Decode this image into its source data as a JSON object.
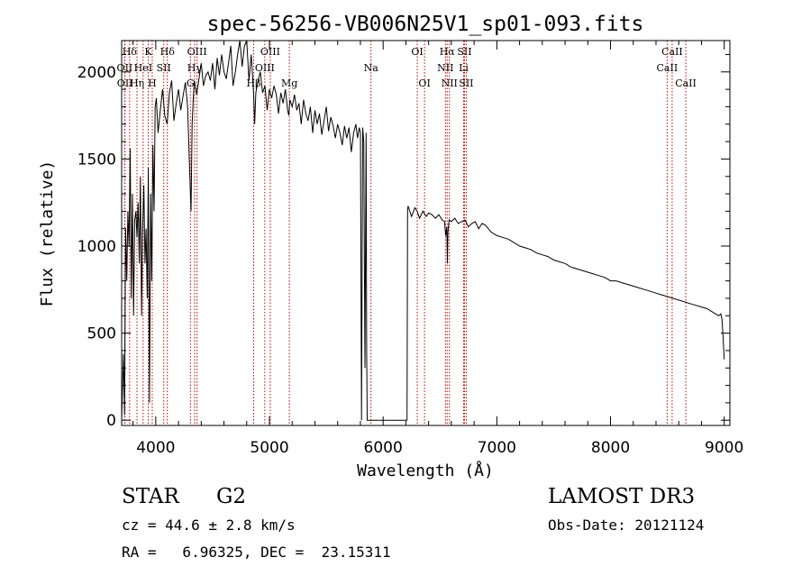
{
  "chart_data": {
    "type": "line",
    "title": "spec-56256-VB006N25V1_sp01-093.fits",
    "xlabel": "Wavelength (Å)",
    "ylabel": "Flux (relative)",
    "xlim": [
      3700,
      9050
    ],
    "ylim": [
      -30,
      2180
    ],
    "xticks": [
      4000,
      5000,
      6000,
      7000,
      8000,
      9000
    ],
    "xtick_labels": [
      "4000",
      "5000",
      "6000",
      "7000",
      "8000",
      "9000"
    ],
    "yticks": [
      0,
      500,
      1000,
      1500,
      2000
    ],
    "ytick_labels": [
      "0",
      "500",
      "1000",
      "1500",
      "2000"
    ],
    "grid": false,
    "line_color": "#000000",
    "marker_color": "#cc0000",
    "series": [
      {
        "name": "flux",
        "x": [
          3700,
          3715,
          3725,
          3735,
          3745,
          3755,
          3765,
          3775,
          3785,
          3795,
          3805,
          3815,
          3825,
          3835,
          3845,
          3855,
          3865,
          3875,
          3885,
          3895,
          3905,
          3915,
          3925,
          3935,
          3945,
          3955,
          3965,
          3975,
          3985,
          3995,
          4005,
          4020,
          4040,
          4060,
          4080,
          4100,
          4120,
          4140,
          4160,
          4180,
          4200,
          4220,
          4240,
          4260,
          4280,
          4300,
          4310,
          4320,
          4330,
          4340,
          4360,
          4380,
          4400,
          4420,
          4440,
          4460,
          4480,
          4500,
          4520,
          4540,
          4560,
          4580,
          4600,
          4620,
          4640,
          4660,
          4680,
          4700,
          4720,
          4740,
          4760,
          4780,
          4800,
          4820,
          4840,
          4860,
          4870,
          4880,
          4900,
          4920,
          4940,
          4960,
          4980,
          5000,
          5020,
          5040,
          5060,
          5080,
          5100,
          5120,
          5140,
          5160,
          5170,
          5180,
          5200,
          5220,
          5240,
          5260,
          5280,
          5300,
          5320,
          5340,
          5360,
          5380,
          5400,
          5420,
          5440,
          5460,
          5480,
          5500,
          5520,
          5540,
          5560,
          5580,
          5600,
          5620,
          5640,
          5660,
          5680,
          5700,
          5720,
          5740,
          5760,
          5775,
          5790,
          5800,
          5810,
          5820,
          5830,
          5840,
          5850,
          5855,
          5860,
          5870,
          5880,
          6200,
          6210,
          6215,
          6220,
          6250,
          6280,
          6300,
          6320,
          6350,
          6380,
          6400,
          6430,
          6460,
          6490,
          6520,
          6540,
          6550,
          6560,
          6565,
          6570,
          6580,
          6600,
          6630,
          6660,
          6690,
          6720,
          6750,
          6780,
          6810,
          6840,
          6870,
          6900,
          6950,
          7000,
          7050,
          7100,
          7150,
          7200,
          7250,
          7300,
          7350,
          7400,
          7450,
          7500,
          7550,
          7600,
          7650,
          7700,
          7750,
          7800,
          7850,
          7900,
          7950,
          8000,
          8050,
          8100,
          8150,
          8200,
          8250,
          8300,
          8350,
          8400,
          8450,
          8500,
          8550,
          8600,
          8650,
          8700,
          8750,
          8800,
          8850,
          8900,
          8950,
          8970,
          8980,
          8990,
          9000
        ],
        "values": [
          0,
          380,
          30,
          1100,
          800,
          1200,
          1000,
          1560,
          700,
          1300,
          600,
          1150,
          1200,
          1050,
          1250,
          900,
          1400,
          600,
          1100,
          1350,
          900,
          1100,
          700,
          1450,
          100,
          1300,
          800,
          1580,
          1200,
          1800,
          1850,
          1650,
          1780,
          1900,
          1750,
          1700,
          1880,
          1950,
          1720,
          1820,
          1900,
          1780,
          1860,
          1940,
          1800,
          1400,
          1200,
          1700,
          1850,
          1950,
          1870,
          1960,
          2050,
          1920,
          1980,
          2000,
          1950,
          2050,
          1900,
          2080,
          1980,
          2100,
          2000,
          1960,
          2050,
          2150,
          1920,
          2000,
          2100,
          2180,
          2030,
          2150,
          2200,
          1950,
          2100,
          1880,
          1700,
          1880,
          1950,
          2000,
          1880,
          1920,
          1780,
          1900,
          1850,
          1920,
          1870,
          1760,
          1880,
          1820,
          1900,
          1780,
          1750,
          1840,
          1800,
          1870,
          1780,
          1820,
          1700,
          1840,
          1760,
          1720,
          1800,
          1650,
          1780,
          1700,
          1760,
          1640,
          1720,
          1800,
          1660,
          1740,
          1690,
          1620,
          1700,
          1650,
          1580,
          1690,
          1620,
          1680,
          1540,
          1650,
          1700,
          1620,
          1680,
          1650,
          0,
          1680,
          1600,
          300,
          1650,
          400,
          0,
          0,
          0,
          0,
          0,
          1210,
          1230,
          1170,
          1220,
          1200,
          1160,
          1200,
          1170,
          1190,
          1180,
          1160,
          1180,
          1150,
          1140,
          1060,
          1110,
          900,
          1080,
          1150,
          1140,
          1160,
          1130,
          1140,
          1150,
          1110,
          1130,
          1140,
          1100,
          1130,
          1120,
          1080,
          1060,
          1050,
          1040,
          1020,
          1000,
          990,
          980,
          960,
          950,
          940,
          920,
          910,
          900,
          880,
          870,
          860,
          850,
          840,
          830,
          820,
          800,
          800,
          790,
          780,
          770,
          760,
          750,
          740,
          730,
          720,
          710,
          700,
          690,
          680,
          670,
          660,
          650,
          640,
          620,
          600,
          610,
          580,
          480,
          350
        ]
      }
    ],
    "line_markers": [
      {
        "label": "Hδ",
        "wavelength": 3770,
        "row": 0
      },
      {
        "label": "OII",
        "wavelength": 3727,
        "row": 1
      },
      {
        "label": "OII",
        "wavelength": 3729,
        "row": 2
      },
      {
        "label": "K",
        "wavelength": 3934,
        "row": 0
      },
      {
        "label": "HeI",
        "wavelength": 3889,
        "row": 1
      },
      {
        "label": "Hη",
        "wavelength": 3835,
        "row": 2
      },
      {
        "label": "H",
        "wavelength": 3969,
        "row": 2
      },
      {
        "label": "Hδ",
        "wavelength": 4102,
        "row": 0
      },
      {
        "label": "SII",
        "wavelength": 4070,
        "row": 1
      },
      {
        "label": "OIII",
        "wavelength": 4363,
        "row": 0
      },
      {
        "label": "Hγ",
        "wavelength": 4341,
        "row": 1
      },
      {
        "label": "G",
        "wavelength": 4305,
        "row": 2
      },
      {
        "label": "OIII",
        "wavelength": 5007,
        "row": 0
      },
      {
        "label": "OIII",
        "wavelength": 4959,
        "row": 1
      },
      {
        "label": "Hβ",
        "wavelength": 4861,
        "row": 2
      },
      {
        "label": "Mg",
        "wavelength": 5175,
        "row": 2
      },
      {
        "label": "Na",
        "wavelength": 5893,
        "row": 1
      },
      {
        "label": "OI",
        "wavelength": 6300,
        "row": 0
      },
      {
        "label": "OI",
        "wavelength": 6364,
        "row": 2
      },
      {
        "label": "Hα",
        "wavelength": 6563,
        "row": 0
      },
      {
        "label": "SII",
        "wavelength": 6716,
        "row": 0
      },
      {
        "label": "NII",
        "wavelength": 6548,
        "row": 1
      },
      {
        "label": "Li",
        "wavelength": 6708,
        "row": 1
      },
      {
        "label": "NII",
        "wavelength": 6583,
        "row": 2
      },
      {
        "label": "SII",
        "wavelength": 6731,
        "row": 2
      },
      {
        "label": "CaII",
        "wavelength": 8542,
        "row": 0
      },
      {
        "label": "CaII",
        "wavelength": 8498,
        "row": 1
      },
      {
        "label": "CaII",
        "wavelength": 8662,
        "row": 2
      }
    ]
  },
  "info": {
    "object_class": "STAR",
    "subclass": "G2",
    "survey": "LAMOST DR3",
    "redshift_line": "cz = 44.6 ± 2.8 km/s",
    "obs_date_line": "Obs-Date: 20121124",
    "coords_line": "RA =   6.96325, DEC =  23.15311"
  }
}
